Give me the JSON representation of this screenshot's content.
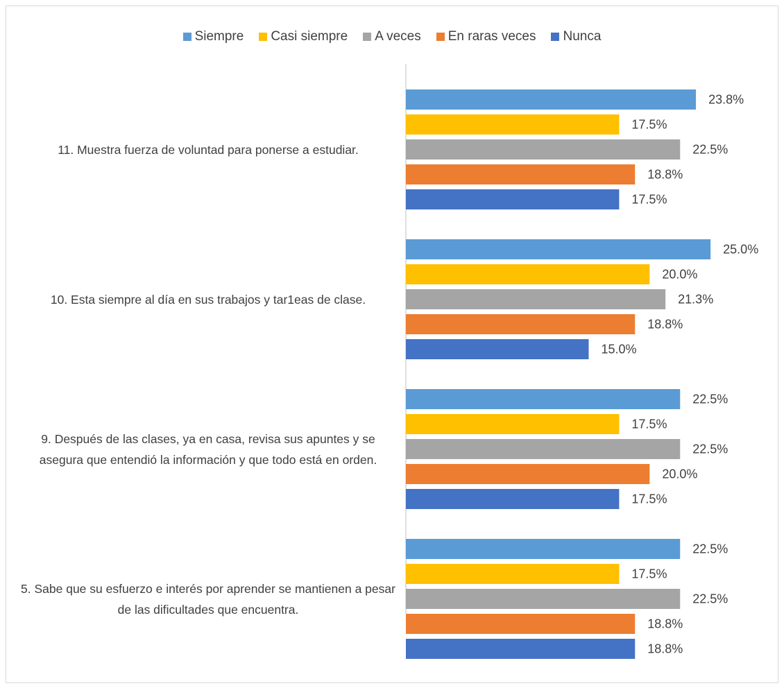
{
  "chart_data": {
    "type": "bar",
    "orientation": "horizontal",
    "categories": [
      "11. Muestra fuerza de voluntad para ponerse a estudiar.",
      "10. Esta siempre al día en sus trabajos y tar1eas de clase.",
      "9. Después de las clases, ya en casa, revisa sus apuntes y se asegura que entendió la información y que todo está en orden.",
      "5. Sabe que su esfuerzo e interés por aprender se mantienen a pesar de las dificultades que encuentra."
    ],
    "series": [
      {
        "name": "Siempre",
        "color": "#5b9bd5",
        "values": [
          23.8,
          25.0,
          22.5,
          22.5
        ],
        "value_labels": [
          "23.8%",
          "25.0%",
          "22.5%",
          "22.5%"
        ]
      },
      {
        "name": "Casi siempre",
        "color": "#ffc000",
        "values": [
          17.5,
          20.0,
          17.5,
          17.5
        ],
        "value_labels": [
          "17.5%",
          "20.0%",
          "17.5%",
          "17.5%"
        ]
      },
      {
        "name": "A veces",
        "color": "#a5a5a5",
        "values": [
          22.5,
          21.3,
          22.5,
          22.5
        ],
        "value_labels": [
          "22.5%",
          "21.3%",
          "22.5%",
          "22.5%"
        ]
      },
      {
        "name": "En raras veces",
        "color": "#ed7d31",
        "values": [
          18.8,
          18.8,
          20.0,
          18.8
        ],
        "value_labels": [
          "18.8%",
          "18.8%",
          "20.0%",
          "18.8%"
        ]
      },
      {
        "name": "Nunca",
        "color": "#4472c4",
        "values": [
          17.5,
          15.0,
          17.5,
          18.8
        ],
        "value_labels": [
          "17.5%",
          "15.0%",
          "17.5%",
          "18.8%"
        ]
      }
    ],
    "xlim": [
      0,
      30
    ],
    "legend": "top"
  }
}
